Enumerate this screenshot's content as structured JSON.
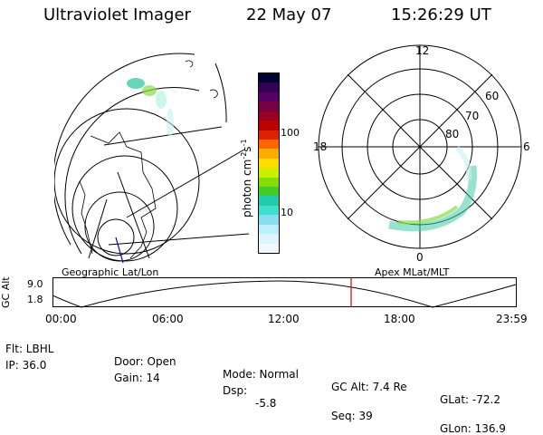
{
  "header": {
    "instrument": "Ultraviolet Imager",
    "date": "22 May 07",
    "time": "15:26:29 UT"
  },
  "left_panel": {
    "caption": "Geographic Lat/Lon"
  },
  "right_panel": {
    "caption": "Apex MLat/MLT",
    "mlt_labels": {
      "top": "12",
      "right": "6",
      "bottom": "0",
      "left": "18"
    },
    "lat_labels": [
      "60",
      "70",
      "80"
    ]
  },
  "colorbar": {
    "unit_label": "photon cm",
    "unit_sup1": "-2",
    "unit_mid": "s",
    "unit_sup2": "-1",
    "ticks": [
      "100",
      "10"
    ],
    "colors": [
      "#000033",
      "#330055",
      "#550066",
      "#770044",
      "#990022",
      "#bb0000",
      "#dd2200",
      "#ff6600",
      "#ffaa00",
      "#ffdd00",
      "#ccee00",
      "#88dd00",
      "#44cc22",
      "#22ccaa",
      "#44ddcc",
      "#88ddee",
      "#bbeeff",
      "#ddf4ff",
      "#eef8ff"
    ]
  },
  "altitude_plot": {
    "ylabel": "GC Alt",
    "yticks": [
      "9.0",
      "1.8"
    ],
    "xticks": [
      "00:00",
      "06:00",
      "12:00",
      "18:00",
      "23:59"
    ],
    "marker_color": "#dd0000"
  },
  "footer": {
    "row1": {
      "flt": "Flt: LBHL",
      "door": "Door: Open",
      "mode": "Mode: Normal",
      "gcalt": "GC Alt: 7.4 Re",
      "glat": "GLat: -72.2"
    },
    "row2": {
      "ip": "IP: 36.0",
      "gain": "Gain: 14",
      "dsp_label": "Dsp:",
      "dsp_value": "-5.8",
      "seq": "Seq: 39",
      "glon": "GLon: 136.9"
    }
  }
}
